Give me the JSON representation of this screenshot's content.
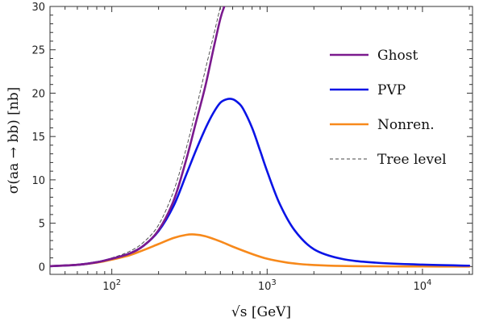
{
  "chart_data": {
    "type": "line",
    "xlabel": "√s [GeV]",
    "ylabel": "σ(aa → bb) [nb]",
    "x_scale": "log",
    "xlim": [
      40,
      21000
    ],
    "ylim": [
      -0.9,
      30
    ],
    "x_ticks": [
      {
        "value": 100,
        "base": "10",
        "exp": "2"
      },
      {
        "value": 1000,
        "base": "10",
        "exp": "3"
      },
      {
        "value": 10000,
        "base": "10",
        "exp": "4"
      }
    ],
    "y_ticks": [
      0,
      5,
      10,
      15,
      20,
      25,
      30
    ],
    "legend_position": "top-right",
    "grid": false,
    "series": [
      {
        "name": "Ghost",
        "color": "#7b1a8e",
        "style": "solid",
        "x": [
          40,
          60,
          80,
          100,
          130,
          160,
          200,
          250,
          300,
          350,
          400,
          450,
          500,
          530
        ],
        "y": [
          0.05,
          0.2,
          0.5,
          0.9,
          1.5,
          2.4,
          4.2,
          7.6,
          12.2,
          16.8,
          20.8,
          25.0,
          28.6,
          30
        ]
      },
      {
        "name": "PVP",
        "color": "#0a14e6",
        "style": "solid",
        "x": [
          40,
          60,
          80,
          100,
          130,
          160,
          200,
          250,
          300,
          350,
          400,
          450,
          500,
          550,
          600,
          650,
          700,
          800,
          900,
          1000,
          1200,
          1500,
          2000,
          3000,
          5000,
          10000,
          20000
        ],
        "y": [
          0.05,
          0.2,
          0.5,
          0.9,
          1.5,
          2.4,
          4.1,
          7.0,
          10.5,
          13.5,
          15.9,
          17.7,
          18.9,
          19.3,
          19.3,
          18.9,
          18.2,
          16.0,
          13.4,
          11.0,
          7.3,
          4.2,
          2.0,
          0.9,
          0.45,
          0.22,
          0.1
        ]
      },
      {
        "name": "Nonren.",
        "color": "#f7891b",
        "style": "solid",
        "x": [
          40,
          60,
          80,
          100,
          130,
          160,
          200,
          250,
          300,
          340,
          400,
          500,
          600,
          800,
          1000,
          1300,
          1600,
          2000,
          3000,
          5000,
          10000,
          20000
        ],
        "y": [
          0.05,
          0.2,
          0.45,
          0.8,
          1.3,
          1.9,
          2.6,
          3.3,
          3.65,
          3.7,
          3.5,
          2.9,
          2.3,
          1.45,
          0.9,
          0.5,
          0.3,
          0.18,
          0.07,
          0.03,
          0.01,
          0.0
        ]
      },
      {
        "name": "Tree level",
        "color": "#444444",
        "style": "dashed",
        "x": [
          40,
          60,
          80,
          100,
          130,
          160,
          200,
          250,
          300,
          350,
          400,
          450,
          500
        ],
        "y": [
          0.05,
          0.2,
          0.55,
          1.0,
          1.75,
          2.8,
          4.8,
          8.7,
          13.5,
          18.3,
          22.7,
          26.5,
          30
        ]
      }
    ]
  }
}
